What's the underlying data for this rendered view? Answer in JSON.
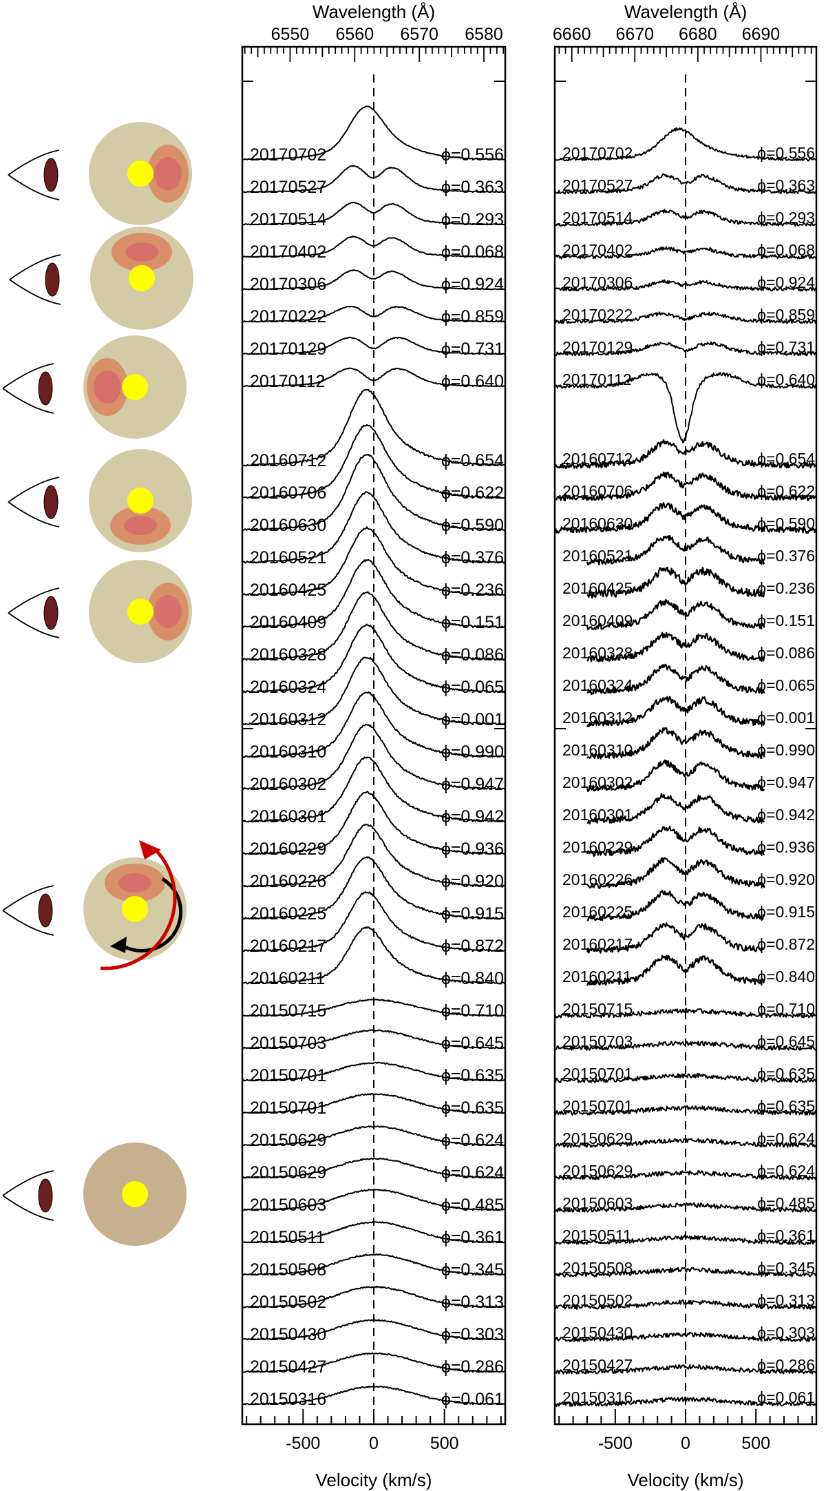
{
  "chart_data": [
    {
      "type": "line",
      "title": "",
      "xlabel": "Velocity (km/s)",
      "x2label": "Wavelength (Å)",
      "x_ticks": [
        "-500",
        "0",
        "500"
      ],
      "x2_ticks": [
        "6550",
        "6560",
        "6570",
        "6580"
      ],
      "xlim": [
        -930,
        930
      ],
      "x2lim": [
        6542.6,
        6583.3
      ],
      "center_line_x": 0,
      "grid": false,
      "series": [
        {
          "name": "20170702",
          "phase": "ϕ=0.556",
          "profile": "single",
          "peak": 0.95,
          "noise": 0.01
        },
        {
          "name": "20170527",
          "phase": "ϕ=0.363",
          "profile": "double",
          "peak": 0.62,
          "noise": 0.01
        },
        {
          "name": "20170514",
          "phase": "ϕ=0.293",
          "profile": "double",
          "peak": 0.52,
          "noise": 0.01
        },
        {
          "name": "20170402",
          "phase": "ϕ=0.068",
          "profile": "double",
          "peak": 0.48,
          "noise": 0.01
        },
        {
          "name": "20170306",
          "phase": "ϕ=0.924",
          "profile": "double",
          "peak": 0.45,
          "noise": 0.01
        },
        {
          "name": "20170222",
          "phase": "ϕ=0.859",
          "profile": "absorption",
          "peak": 0.42,
          "noise": 0.01
        },
        {
          "name": "20170129",
          "phase": "ϕ=0.731",
          "profile": "absorption",
          "peak": 0.46,
          "noise": 0.01
        },
        {
          "name": "20170112",
          "phase": "ϕ=0.640",
          "profile": "absorption",
          "peak": 0.5,
          "noise": 0.01
        },
        {
          "name": "20160712",
          "phase": "ϕ=0.654",
          "profile": "single",
          "peak": 1.35,
          "noise": 0.02
        },
        {
          "name": "20160706",
          "phase": "ϕ=0.622",
          "profile": "single",
          "peak": 1.3,
          "noise": 0.02
        },
        {
          "name": "20160630",
          "phase": "ϕ=0.590",
          "profile": "single",
          "peak": 1.35,
          "noise": 0.02
        },
        {
          "name": "20160521",
          "phase": "ϕ=0.376",
          "profile": "single",
          "peak": 1.25,
          "noise": 0.02
        },
        {
          "name": "20160425",
          "phase": "ϕ=0.236",
          "profile": "single",
          "peak": 1.2,
          "noise": 0.02
        },
        {
          "name": "20160409",
          "phase": "ϕ=0.151",
          "profile": "single",
          "peak": 1.2,
          "noise": 0.02
        },
        {
          "name": "20160328",
          "phase": "ϕ=0.086",
          "profile": "single",
          "peak": 1.2,
          "noise": 0.02
        },
        {
          "name": "20160324",
          "phase": "ϕ=0.065",
          "profile": "single",
          "peak": 1.2,
          "noise": 0.02
        },
        {
          "name": "20160312",
          "phase": "ϕ=0.001",
          "profile": "single",
          "peak": 1.2,
          "noise": 0.02
        },
        {
          "name": "20160310",
          "phase": "ϕ=0.990",
          "profile": "single",
          "peak": 1.15,
          "noise": 0.02
        },
        {
          "name": "20160302",
          "phase": "ϕ=0.947",
          "profile": "single",
          "peak": 1.15,
          "noise": 0.02
        },
        {
          "name": "20160301",
          "phase": "ϕ=0.942",
          "profile": "single",
          "peak": 1.15,
          "noise": 0.02
        },
        {
          "name": "20160229",
          "phase": "ϕ=0.936",
          "profile": "single",
          "peak": 1.1,
          "noise": 0.02
        },
        {
          "name": "20160226",
          "phase": "ϕ=0.920",
          "profile": "single",
          "peak": 1.1,
          "noise": 0.02
        },
        {
          "name": "20160225",
          "phase": "ϕ=0.915",
          "profile": "single",
          "peak": 1.1,
          "noise": 0.02
        },
        {
          "name": "20160217",
          "phase": "ϕ=0.872",
          "profile": "single",
          "peak": 1.05,
          "noise": 0.02
        },
        {
          "name": "20160211",
          "phase": "ϕ=0.840",
          "profile": "single",
          "peak": 1.0,
          "noise": 0.02
        },
        {
          "name": "20150715",
          "phase": "ϕ=0.710",
          "profile": "broad",
          "peak": 0.38,
          "noise": 0.015
        },
        {
          "name": "20150703",
          "phase": "ϕ=0.645",
          "profile": "broad",
          "peak": 0.42,
          "noise": 0.015
        },
        {
          "name": "20150701",
          "phase": "ϕ=0.635",
          "profile": "broad",
          "peak": 0.42,
          "noise": 0.015
        },
        {
          "name": "20150701",
          "phase": "ϕ=0.635",
          "profile": "broad",
          "peak": 0.45,
          "noise": 0.015
        },
        {
          "name": "20150629",
          "phase": "ϕ=0.624",
          "profile": "broad",
          "peak": 0.45,
          "noise": 0.015
        },
        {
          "name": "20150629",
          "phase": "ϕ=0.624",
          "profile": "broad",
          "peak": 0.45,
          "noise": 0.015
        },
        {
          "name": "20150603",
          "phase": "ϕ=0.485",
          "profile": "broad",
          "peak": 0.48,
          "noise": 0.015
        },
        {
          "name": "20150511",
          "phase": "ϕ=0.361",
          "profile": "broad",
          "peak": 0.48,
          "noise": 0.015
        },
        {
          "name": "20150508",
          "phase": "ϕ=0.345",
          "profile": "broad",
          "peak": 0.48,
          "noise": 0.015
        },
        {
          "name": "20150502",
          "phase": "ϕ=0.313",
          "profile": "broad",
          "peak": 0.48,
          "noise": 0.015
        },
        {
          "name": "20150430",
          "phase": "ϕ=0.303",
          "profile": "broad",
          "peak": 0.46,
          "noise": 0.015
        },
        {
          "name": "20150427",
          "phase": "ϕ=0.286",
          "profile": "broad",
          "peak": 0.44,
          "noise": 0.015
        },
        {
          "name": "20150316",
          "phase": "ϕ=0.061",
          "profile": "broad",
          "peak": 0.42,
          "noise": 0.015
        }
      ]
    },
    {
      "type": "line",
      "title": "",
      "xlabel": "Velocity (km/s)",
      "x2label": "Wavelength (Å)",
      "x_ticks": [
        "-500",
        "0",
        "500"
      ],
      "x2_ticks": [
        "6660",
        "6670",
        "6680",
        "6690"
      ],
      "xlim": [
        -930,
        930
      ],
      "x2lim": [
        6657.3,
        6698.8
      ],
      "center_line_x": 0,
      "grid": false,
      "series": [
        {
          "name": "20170702",
          "phase": "ϕ=0.556",
          "profile": "single",
          "peak": 0.55,
          "noise": 0.03
        },
        {
          "name": "20170527",
          "phase": "ϕ=0.363",
          "profile": "double",
          "peak": 0.4,
          "noise": 0.04
        },
        {
          "name": "20170514",
          "phase": "ϕ=0.293",
          "profile": "double",
          "peak": 0.32,
          "noise": 0.04
        },
        {
          "name": "20170402",
          "phase": "ϕ=0.068",
          "profile": "double",
          "peak": 0.2,
          "noise": 0.04
        },
        {
          "name": "20170306",
          "phase": "ϕ=0.924",
          "profile": "double",
          "peak": 0.18,
          "noise": 0.04
        },
        {
          "name": "20170222",
          "phase": "ϕ=0.859",
          "profile": "absorption",
          "peak": 0.22,
          "noise": 0.04
        },
        {
          "name": "20170129",
          "phase": "ϕ=0.731",
          "profile": "absorption",
          "peak": 0.3,
          "noise": 0.04
        },
        {
          "name": "20170112",
          "phase": "ϕ=0.640",
          "profile": "deepabs",
          "peak": 1.6,
          "noise": 0.04
        },
        {
          "name": "20160712",
          "phase": "ϕ=0.654",
          "profile": "double",
          "peak": 0.55,
          "noise": 0.07
        },
        {
          "name": "20160706",
          "phase": "ϕ=0.622",
          "profile": "double",
          "peak": 0.55,
          "noise": 0.07
        },
        {
          "name": "20160630",
          "phase": "ϕ=0.590",
          "profile": "double",
          "peak": 0.6,
          "noise": 0.07
        },
        {
          "name": "20160521",
          "phase": "ϕ=0.376",
          "profile": "double",
          "peak": 0.6,
          "noise": 0.07
        },
        {
          "name": "20160425",
          "phase": "ϕ=0.236",
          "profile": "double",
          "peak": 0.6,
          "noise": 0.09
        },
        {
          "name": "20160409",
          "phase": "ϕ=0.151",
          "profile": "double",
          "peak": 0.6,
          "noise": 0.07
        },
        {
          "name": "20160328",
          "phase": "ϕ=0.086",
          "profile": "double",
          "peak": 0.6,
          "noise": 0.07
        },
        {
          "name": "20160324",
          "phase": "ϕ=0.065",
          "profile": "double",
          "peak": 0.6,
          "noise": 0.07
        },
        {
          "name": "20160312",
          "phase": "ϕ=0.001",
          "profile": "double",
          "peak": 0.62,
          "noise": 0.07
        },
        {
          "name": "20160310",
          "phase": "ϕ=0.990",
          "profile": "double",
          "peak": 0.62,
          "noise": 0.07
        },
        {
          "name": "20160302",
          "phase": "ϕ=0.947",
          "profile": "double",
          "peak": 0.62,
          "noise": 0.07
        },
        {
          "name": "20160301",
          "phase": "ϕ=0.942",
          "profile": "double",
          "peak": 0.62,
          "noise": 0.07
        },
        {
          "name": "20160229",
          "phase": "ϕ=0.936",
          "profile": "double",
          "peak": 0.62,
          "noise": 0.07
        },
        {
          "name": "20160226",
          "phase": "ϕ=0.920",
          "profile": "double",
          "peak": 0.62,
          "noise": 0.07
        },
        {
          "name": "20160225",
          "phase": "ϕ=0.915",
          "profile": "double",
          "peak": 0.62,
          "noise": 0.07
        },
        {
          "name": "20160217",
          "phase": "ϕ=0.872",
          "profile": "double",
          "peak": 0.62,
          "noise": 0.07
        },
        {
          "name": "20160211",
          "phase": "ϕ=0.840",
          "profile": "double",
          "peak": 0.62,
          "noise": 0.07
        },
        {
          "name": "20150715",
          "phase": "ϕ=0.710",
          "profile": "broad",
          "peak": 0.12,
          "noise": 0.05
        },
        {
          "name": "20150703",
          "phase": "ϕ=0.645",
          "profile": "broad",
          "peak": 0.12,
          "noise": 0.05
        },
        {
          "name": "20150701",
          "phase": "ϕ=0.635",
          "profile": "broad",
          "peak": 0.12,
          "noise": 0.05
        },
        {
          "name": "20150701",
          "phase": "ϕ=0.635",
          "profile": "broad",
          "peak": 0.12,
          "noise": 0.05
        },
        {
          "name": "20150629",
          "phase": "ϕ=0.624",
          "profile": "broad",
          "peak": 0.12,
          "noise": 0.05
        },
        {
          "name": "20150629",
          "phase": "ϕ=0.624",
          "profile": "broad",
          "peak": 0.12,
          "noise": 0.05
        },
        {
          "name": "20150603",
          "phase": "ϕ=0.485",
          "profile": "broad",
          "peak": 0.12,
          "noise": 0.05
        },
        {
          "name": "20150511",
          "phase": "ϕ=0.361",
          "profile": "broad",
          "peak": 0.12,
          "noise": 0.05
        },
        {
          "name": "20150508",
          "phase": "ϕ=0.345",
          "profile": "broad",
          "peak": 0.12,
          "noise": 0.05
        },
        {
          "name": "20150502",
          "phase": "ϕ=0.313",
          "profile": "broad",
          "peak": 0.12,
          "noise": 0.05
        },
        {
          "name": "20150430",
          "phase": "ϕ=0.303",
          "profile": "broad",
          "peak": 0.12,
          "noise": 0.05
        },
        {
          "name": "20150427",
          "phase": "ϕ=0.286",
          "profile": "broad",
          "peak": 0.12,
          "noise": 0.05
        },
        {
          "name": "20150316",
          "phase": "ϕ=0.061",
          "profile": "broad",
          "peak": 0.12,
          "noise": 0.05
        }
      ]
    }
  ],
  "diagrams": [
    {
      "id": "disk-1",
      "type": "hotspot-right",
      "disk_color": "#d3cba6"
    },
    {
      "id": "disk-2",
      "type": "hotspot-back",
      "disk_color": "#d3cba6"
    },
    {
      "id": "disk-3",
      "type": "hotspot-left",
      "disk_color": "#d3cba6"
    },
    {
      "id": "disk-4",
      "type": "hotspot-front",
      "disk_color": "#d3cba6"
    },
    {
      "id": "disk-5",
      "type": "hotspot-right",
      "disk_color": "#d3cba6"
    },
    {
      "id": "disk-6",
      "type": "hotspot-back-rotating",
      "disk_color": "#d3cba6"
    },
    {
      "id": "disk-7",
      "type": "no-hotspot",
      "disk_color": "#c6b08e"
    }
  ],
  "colors": {
    "star": "#ffff00",
    "hotspot_outer": "#d9906a",
    "hotspot_inner": "#d6706a",
    "eye_iris": "#6b1e1e",
    "rotation_arrow": "#cc0000",
    "orbit_arrow": "#000000"
  }
}
